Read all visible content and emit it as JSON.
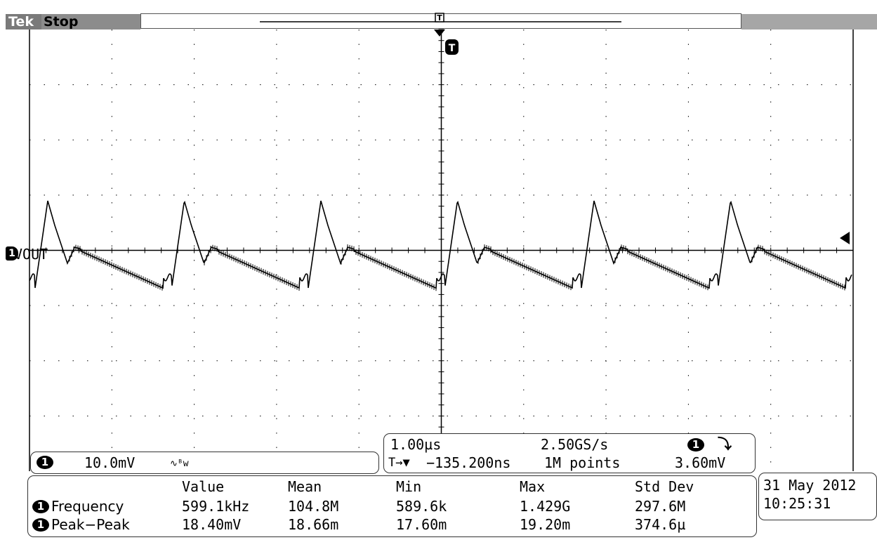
{
  "header": {
    "brand": "Tek",
    "run_state": "Stop"
  },
  "trace": {
    "channel_number": "1",
    "label": "VOUT",
    "trigger_marker": "T"
  },
  "channel_readout": {
    "channel_number": "1",
    "scale": "10.0mV",
    "coupling_icon": "ac-coupling-bw-limit-icon",
    "bw_mark": "∿ᴮw"
  },
  "timebase": {
    "horizontal_scale": "1.00µs",
    "sample_rate": "2.50GS/s",
    "trigger_channel": "1",
    "trigger_slope_icon": "falling-edge-icon",
    "trigger_slope_glyph": "⤵",
    "delay": "−135.200ns",
    "delay_icon": "T→▼",
    "record_length": "1M points",
    "trigger_level": "3.60mV"
  },
  "measurements": {
    "headers": [
      "Value",
      "Mean",
      "Min",
      "Max",
      "Std Dev"
    ],
    "rows": [
      {
        "channel": "1",
        "name": "Frequency",
        "value": "599.1kHz",
        "mean": "104.8M",
        "min": "589.6k",
        "max": "1.429G",
        "std_dev": "297.6M"
      },
      {
        "channel": "1",
        "name": "Peak−Peak",
        "value": "18.40mV",
        "mean": "18.66m",
        "min": "17.60m",
        "max": "19.20m",
        "std_dev": "374.6µ"
      }
    ]
  },
  "datetime": {
    "date": "31 May 2012",
    "time": "10:25:31"
  },
  "colors": {
    "trace": "#000000",
    "graticule": "#000000",
    "header_grey": "#8c8c8c"
  }
}
